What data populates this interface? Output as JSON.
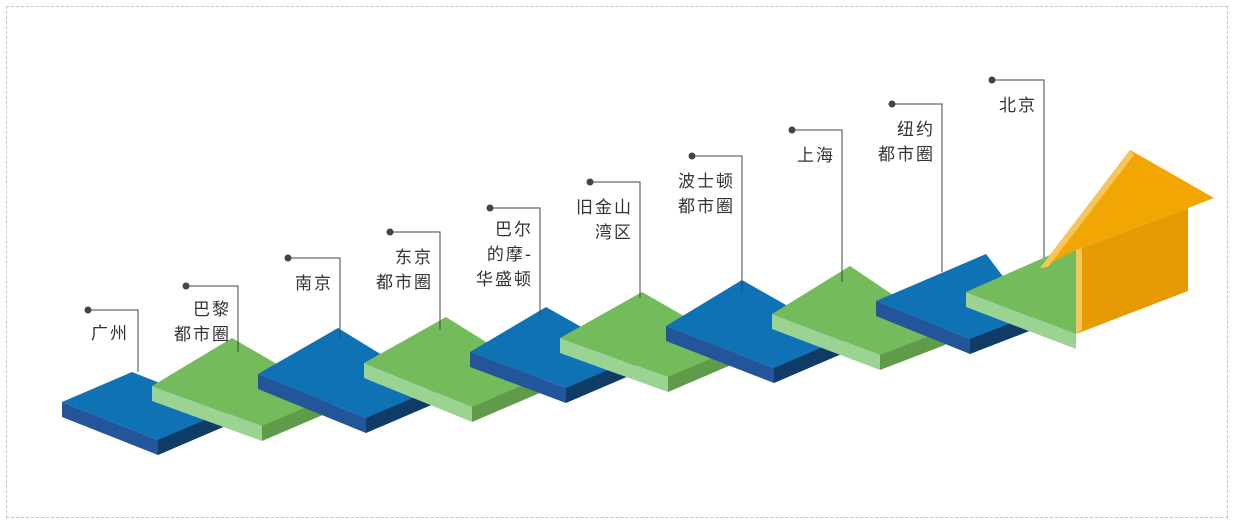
{
  "steps": [
    {
      "lines": [
        "广州"
      ]
    },
    {
      "lines": [
        "巴黎",
        "都市圈"
      ]
    },
    {
      "lines": [
        "南京"
      ]
    },
    {
      "lines": [
        "东京",
        "都市圈"
      ]
    },
    {
      "lines": [
        "巴尔",
        "的摩-",
        "华盛顿"
      ]
    },
    {
      "lines": [
        "旧金山",
        "湾区"
      ]
    },
    {
      "lines": [
        "波士顿",
        "都市圈"
      ]
    },
    {
      "lines": [
        "上海"
      ]
    },
    {
      "lines": [
        "纽约",
        "都市圈"
      ]
    },
    {
      "lines": [
        "北京"
      ]
    }
  ],
  "colors": {
    "blue_top": "#0e72b5",
    "blue_front": "#23559b",
    "blue_riser": "#0f3b67",
    "green_top": "#74bb5c",
    "green_front": "#9bd393",
    "green_riser": "#5f9b49",
    "arrow": "#f2a604",
    "arrow_light": "#f7c656",
    "leader": "#444444",
    "text": "#333333"
  },
  "icons": [
    "stair-step",
    "upward-arrow",
    "leader-dot"
  ]
}
